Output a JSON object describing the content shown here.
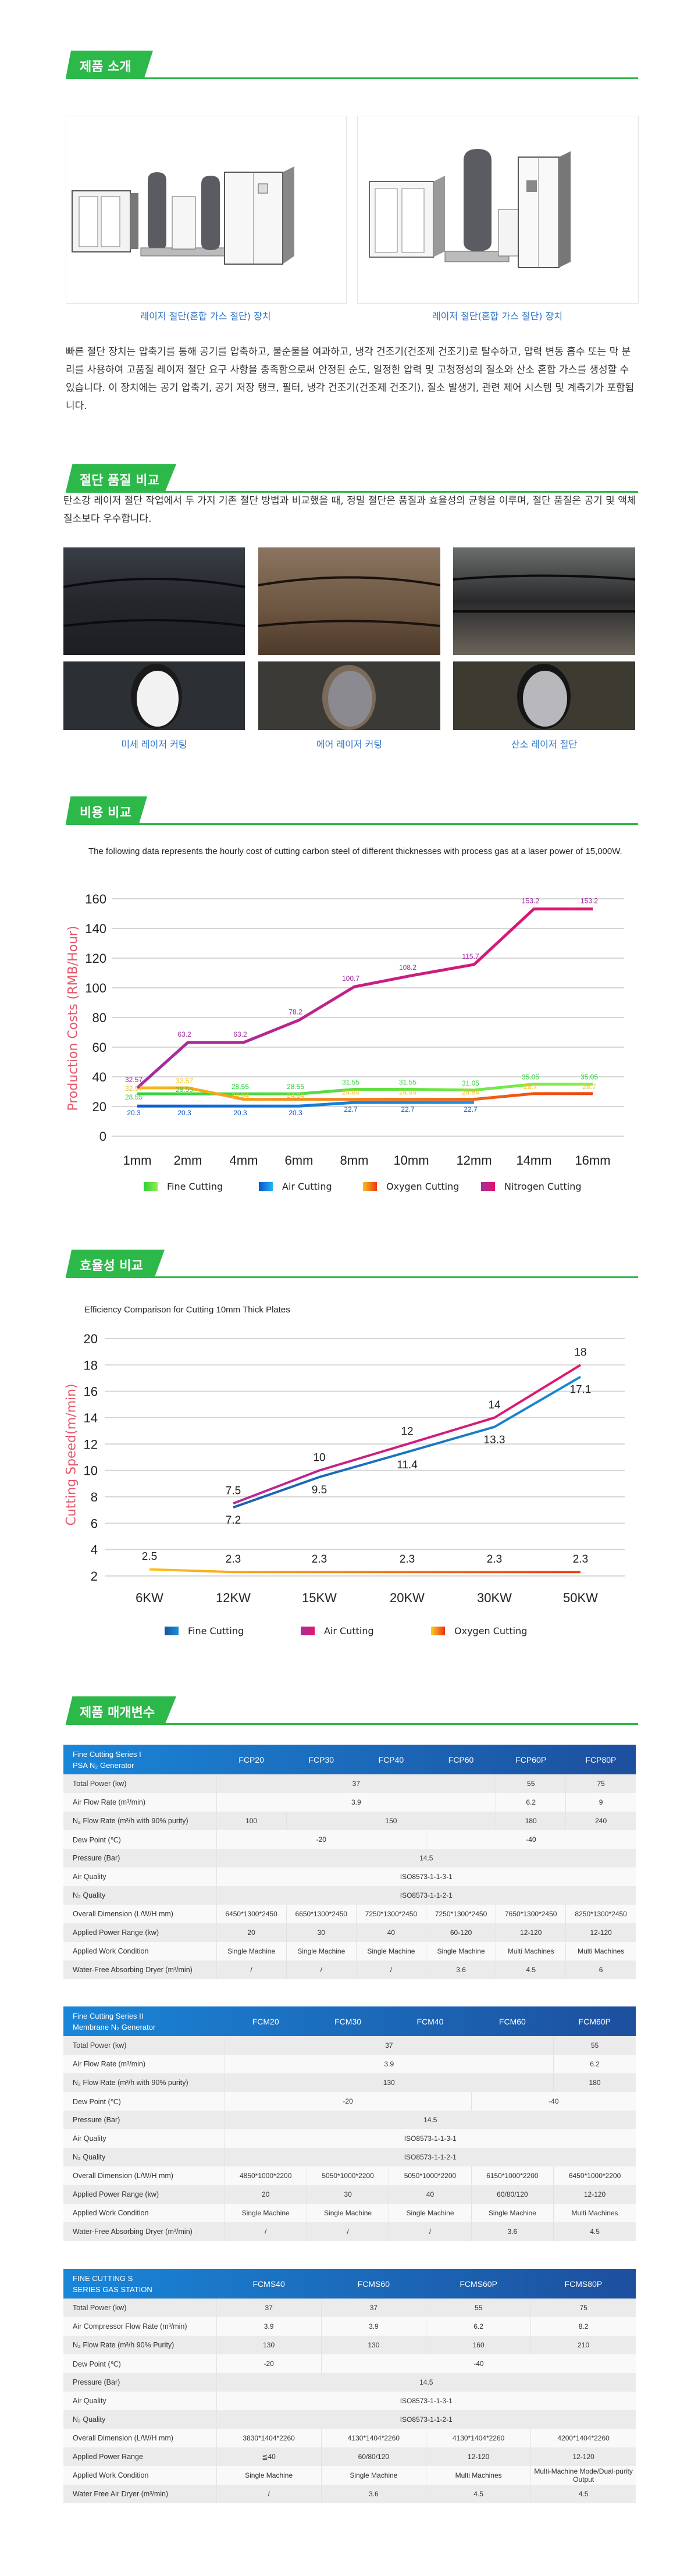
{
  "sections": {
    "intro": {
      "title": "제품 소개",
      "captions": [
        "레이저 절단(혼합 가스 절단) 장치",
        "레이저 절단(혼합 가스 절단) 장치"
      ],
      "paragraph": "빠른 절단 장치는 압축기를 통해 공기를 압축하고, 불순물을 여과하고, 냉각 건조기(건조제 건조기)로 탈수하고, 압력 변동 흡수 또는 막 분리를 사용하여 고품질 레이저 절단 요구 사항을 충족함으로써 안정된 순도, 일정한 압력 및 고청정성의 질소와 산소 혼합 가스를 생성할 수 있습니다. 이 장치에는 공기 압축기, 공기 저장 탱크, 필터, 냉각 건조기(건조제 건조기), 질소 발생기, 관련 제어 시스템 및 계측기가 포함됩니다."
    },
    "quality": {
      "title": "절단 품질 비교",
      "paragraph": "탄소강 레이저 절단 작업에서 두 가지 기존 절단 방법과 비교했을 때, 정밀 절단은 품질과 효율성의 균형을 이루며, 절단 품질은 공기 및 액체 질소보다 우수합니다.",
      "captions": [
        "미세 레이저 커팅",
        "에어 레이저 커팅",
        "산소 레이저 절단"
      ]
    },
    "cost": {
      "title": "비용 비교"
    },
    "efficiency": {
      "title": "효율성 비교"
    },
    "params": {
      "title": "제품 매개변수"
    }
  },
  "chart_data": [
    {
      "type": "line",
      "title": "The following data represents the hourly cost of cutting carbon steel of different thicknesses with process gas at a laser power of 15,000W.",
      "xlabel": "",
      "ylabel": "Production Costs (RMB/Hour)",
      "ylim": [
        0,
        160
      ],
      "yticks": [
        0,
        20,
        40,
        60,
        80,
        100,
        120,
        140,
        160
      ],
      "grid": true,
      "legend": "bottom",
      "categories": [
        "1mm",
        "2mm",
        "4mm",
        "6mm",
        "8mm",
        "10mm",
        "12mm",
        "14mm",
        "16mm"
      ],
      "series": [
        {
          "name": "Fine Cutting",
          "colors": [
            "#2fcf3a",
            "#8ff04a"
          ],
          "values": [
            28.55,
            28.55,
            28.55,
            28.55,
            31.55,
            31.55,
            31.05,
            35.05,
            35.05
          ]
        },
        {
          "name": "Air Cutting",
          "colors": [
            "#0a57d0",
            "#22b2f2"
          ],
          "values": [
            20.3,
            20.3,
            20.3,
            20.3,
            22.7,
            22.7,
            22.7,
            null,
            null
          ]
        },
        {
          "name": "Oxygen Cutting",
          "colors": [
            "#f8c020",
            "#ee3a10"
          ],
          "values": [
            32.57,
            32.57,
            24.84,
            24.84,
            24.84,
            24.84,
            24.84,
            28.7,
            28.7
          ]
        },
        {
          "name": "Nitrogen Cutting",
          "colors": [
            "#a12ea3",
            "#e6136a"
          ],
          "values": [
            32.57,
            63.2,
            63.2,
            78.2,
            100.7,
            108.2,
            115.7,
            153.2,
            153.2
          ]
        }
      ]
    },
    {
      "type": "line",
      "title": "Efficiency Comparison for Cutting 10mm Thick Plates",
      "xlabel": "",
      "ylabel": "Cutting Speed(m/min)",
      "ylim": [
        2,
        20
      ],
      "yticks": [
        2,
        4,
        6,
        8,
        10,
        12,
        14,
        16,
        18,
        20
      ],
      "grid": true,
      "legend": "bottom",
      "categories": [
        "6KW",
        "12KW",
        "15KW",
        "20KW",
        "30KW",
        "50KW"
      ],
      "series": [
        {
          "name": "Fine Cutting",
          "colors": [
            "#1e4f9e",
            "#1690d8"
          ],
          "values": [
            null,
            7.2,
            9.5,
            11.4,
            13.3,
            17.1
          ]
        },
        {
          "name": "Air Cutting",
          "colors": [
            "#a331a5",
            "#ea1264"
          ],
          "values": [
            null,
            7.5,
            10,
            12,
            14,
            18
          ]
        },
        {
          "name": "Oxygen Cutting",
          "colors": [
            "#f9d020",
            "#ee3010"
          ],
          "values": [
            2.5,
            2.3,
            2.3,
            2.3,
            2.3,
            2.3
          ]
        }
      ]
    }
  ],
  "tables": [
    {
      "title_lines": [
        "Fine Cutting Series I",
        "PSA N₂ Generator"
      ],
      "models": [
        "FCP20",
        "FCP30",
        "FCP40",
        "FCP60",
        "FCP60P",
        "FCP80P"
      ],
      "rows": [
        {
          "label": "Total Power (kw)",
          "cells": [
            {
              "v": "37",
              "span": 4
            },
            {
              "v": "55"
            },
            {
              "v": "75"
            }
          ]
        },
        {
          "label": "Air Flow Rate (m³/min)",
          "cells": [
            {
              "v": "3.9",
              "span": 4
            },
            {
              "v": "6.2"
            },
            {
              "v": "9"
            }
          ]
        },
        {
          "label": "N₂ Flow Rate (m³/h with 90% purity)",
          "cells": [
            {
              "v": "100"
            },
            {
              "v": "150",
              "span": 3
            },
            {
              "v": "180"
            },
            {
              "v": "240"
            }
          ]
        },
        {
          "label": "Dew Point (℃)",
          "cells": [
            {
              "v": "-20",
              "span": 3
            },
            {
              "v": "-40",
              "span": 3
            }
          ]
        },
        {
          "label": "Pressure (Bar)",
          "cells": [
            {
              "v": "14.5",
              "span": 6
            }
          ]
        },
        {
          "label": "Air Quality",
          "cells": [
            {
              "v": "ISO8573-1-1-3-1",
              "span": 6
            }
          ]
        },
        {
          "label": "N₂ Quality",
          "cells": [
            {
              "v": "ISO8573-1-1-2-1",
              "span": 6
            }
          ]
        },
        {
          "label": "Overall Dimension (L/W/H mm)",
          "cells": [
            {
              "v": "6450*1300*2450"
            },
            {
              "v": "6650*1300*2450"
            },
            {
              "v": "7250*1300*2450"
            },
            {
              "v": "7250*1300*2450"
            },
            {
              "v": "7650*1300*2450"
            },
            {
              "v": "8250*1300*2450"
            }
          ]
        },
        {
          "label": "Applied Power Range (kw)",
          "cells": [
            {
              "v": "20"
            },
            {
              "v": "30"
            },
            {
              "v": "40"
            },
            {
              "v": "60-120"
            },
            {
              "v": "12-120"
            },
            {
              "v": "12-120"
            }
          ]
        },
        {
          "label": "Applied Work Condition",
          "cells": [
            {
              "v": "Single Machine"
            },
            {
              "v": "Single Machine"
            },
            {
              "v": "Single Machine"
            },
            {
              "v": "Single Machine"
            },
            {
              "v": "Multi Machines"
            },
            {
              "v": "Multi Machines"
            }
          ]
        },
        {
          "label": "Water-Free Absorbing Dryer (m³/min)",
          "cells": [
            {
              "v": "/"
            },
            {
              "v": "/"
            },
            {
              "v": "/"
            },
            {
              "v": "3.6"
            },
            {
              "v": "4.5"
            },
            {
              "v": "6"
            }
          ]
        }
      ]
    },
    {
      "title_lines": [
        "Fine Cutting Series II",
        "Membrane N₂ Generator"
      ],
      "models": [
        "FCM20",
        "FCM30",
        "FCM40",
        "FCM60",
        "FCM60P"
      ],
      "rows": [
        {
          "label": "Total Power (kw)",
          "cells": [
            {
              "v": "37",
              "span": 4
            },
            {
              "v": "55"
            }
          ]
        },
        {
          "label": "Air Flow Rate (m³/min)",
          "cells": [
            {
              "v": "3.9",
              "span": 4
            },
            {
              "v": "6.2"
            }
          ]
        },
        {
          "label": "N₂ Flow Rate (m³/h with 90% purity)",
          "cells": [
            {
              "v": "130",
              "span": 4
            },
            {
              "v": "180"
            }
          ]
        },
        {
          "label": "Dew Point (℃)",
          "cells": [
            {
              "v": "-20",
              "span": 3
            },
            {
              "v": "-40",
              "span": 2
            }
          ]
        },
        {
          "label": "Pressure (Bar)",
          "cells": [
            {
              "v": "14.5",
              "span": 5
            }
          ]
        },
        {
          "label": "Air Quality",
          "cells": [
            {
              "v": "ISO8573-1-1-3-1",
              "span": 5
            }
          ]
        },
        {
          "label": "N₂ Quality",
          "cells": [
            {
              "v": "ISO8573-1-1-2-1",
              "span": 5
            }
          ]
        },
        {
          "label": "Overall Dimension (L/W/H mm)",
          "cells": [
            {
              "v": "4850*1000*2200"
            },
            {
              "v": "5050*1000*2200"
            },
            {
              "v": "5050*1000*2200"
            },
            {
              "v": "6150*1000*2200"
            },
            {
              "v": "6450*1000*2200"
            }
          ]
        },
        {
          "label": "Applied Power Range (kw)",
          "cells": [
            {
              "v": "20"
            },
            {
              "v": "30"
            },
            {
              "v": "40"
            },
            {
              "v": "60/80/120"
            },
            {
              "v": "12-120"
            }
          ]
        },
        {
          "label": "Applied Work Condition",
          "cells": [
            {
              "v": "Single Machine"
            },
            {
              "v": "Single Machine"
            },
            {
              "v": "Single Machine"
            },
            {
              "v": "Single Machine"
            },
            {
              "v": "Multi Machines"
            }
          ]
        },
        {
          "label": "Water-Free Absorbing Dryer (m³/min)",
          "cells": [
            {
              "v": "/"
            },
            {
              "v": "/"
            },
            {
              "v": "/"
            },
            {
              "v": "3.6"
            },
            {
              "v": "4.5"
            }
          ]
        }
      ]
    },
    {
      "title_lines": [
        "FINE CUTTING S",
        "SERIES GAS STATION"
      ],
      "models": [
        "FCMS40",
        "FCMS60",
        "FCMS60P",
        "FCMS80P"
      ],
      "rows": [
        {
          "label": "Total Power (kw)",
          "cells": [
            {
              "v": "37"
            },
            {
              "v": "37"
            },
            {
              "v": "55"
            },
            {
              "v": "75"
            }
          ]
        },
        {
          "label": "Air Compressor Flow Rate (m³/min)",
          "cells": [
            {
              "v": "3.9"
            },
            {
              "v": "3.9"
            },
            {
              "v": "6.2"
            },
            {
              "v": "8.2"
            }
          ]
        },
        {
          "label": "N₂ Flow Rate (m³/h 90% Purity)",
          "cells": [
            {
              "v": "130"
            },
            {
              "v": "130"
            },
            {
              "v": "160"
            },
            {
              "v": "210"
            }
          ]
        },
        {
          "label": "Dew Point (℃)",
          "cells": [
            {
              "v": "-20"
            },
            {
              "v": "-40",
              "span": 3
            }
          ]
        },
        {
          "label": "Pressure (Bar)",
          "cells": [
            {
              "v": "14.5",
              "span": 4
            }
          ]
        },
        {
          "label": "Air Quality",
          "cells": [
            {
              "v": "ISO8573-1-1-3-1",
              "span": 4
            }
          ]
        },
        {
          "label": "N₂ Quality",
          "cells": [
            {
              "v": "ISO8573-1-1-2-1",
              "span": 4
            }
          ]
        },
        {
          "label": "Overall Dimension (L/W/H mm)",
          "cells": [
            {
              "v": "3830*1404*2260"
            },
            {
              "v": "4130*1404*2260"
            },
            {
              "v": "4130*1404*2260"
            },
            {
              "v": "4200*1404*2260"
            }
          ]
        },
        {
          "label": "Applied Power Range",
          "cells": [
            {
              "v": "≦40"
            },
            {
              "v": "60/80/120"
            },
            {
              "v": "12-120"
            },
            {
              "v": "12-120"
            }
          ]
        },
        {
          "label": "Applied Work Condition",
          "cells": [
            {
              "v": "Single Machine"
            },
            {
              "v": "Single Machine"
            },
            {
              "v": "Multi Machines"
            },
            {
              "v": "Multi-Machine Mode/Dual-purity Output"
            }
          ]
        },
        {
          "label": "Water Free Air Dryer (m³/min)",
          "cells": [
            {
              "v": "/"
            },
            {
              "v": "3.6"
            },
            {
              "v": "4.5"
            },
            {
              "v": "4.5"
            }
          ]
        }
      ]
    }
  ],
  "colors": {
    "accent_green": "#2db84a",
    "caption_blue": "#2b74c8",
    "axis_title": "#e5576a"
  }
}
